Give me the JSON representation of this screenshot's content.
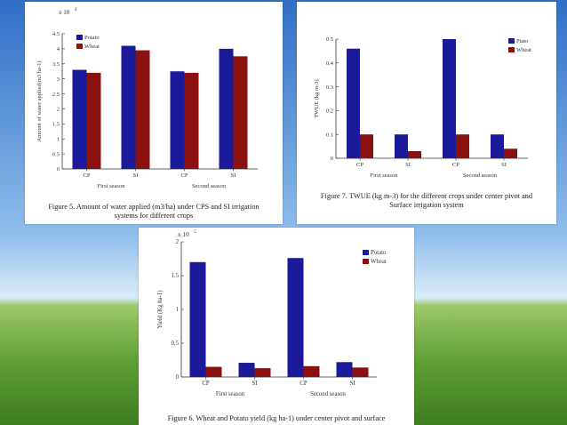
{
  "background": {
    "sky": "#3f7fd0",
    "sky_light": "#bcd9f3",
    "grass": "#6aa83a",
    "grass_dark": "#3e7d1e"
  },
  "colors": {
    "potato": "#1a1a9a",
    "wheat": "#8b1010"
  },
  "chart_data": [
    {
      "type": "bar",
      "ylabel": "Amount of water applied(m3 ha-1)",
      "exponent": "x 10",
      "exponent_power": "4",
      "yticks": [
        "0",
        "0.5",
        "1",
        "1.5",
        "2",
        "2.5",
        "3",
        "3.5",
        "4",
        "4.5"
      ],
      "ylim": [
        0,
        4.5
      ],
      "categories": [
        "CP",
        "SI",
        "CP",
        "SI"
      ],
      "groups": [
        "First season",
        "Second season"
      ],
      "series": [
        {
          "name": "Potato",
          "values": [
            3.3,
            4.1,
            3.25,
            4.0
          ]
        },
        {
          "name": "Wheat",
          "values": [
            3.2,
            3.95,
            3.2,
            3.75
          ]
        }
      ],
      "caption": [
        "Figure 5. Amount of water applied (m3/ha) under CPS and SI irrigation",
        "systems for different crops"
      ]
    },
    {
      "type": "bar",
      "ylabel": "TWUE (kg m-3)",
      "yticks": [
        "0",
        "0.1",
        "0.2",
        "0.3",
        "0.4",
        "0.5"
      ],
      "ylim": [
        0,
        0.5
      ],
      "categories": [
        "CP",
        "SI",
        "CP",
        "SI"
      ],
      "groups": [
        "First season",
        "Second season"
      ],
      "series": [
        {
          "name": "Ptato",
          "values": [
            0.46,
            0.1,
            0.5,
            0.1
          ]
        },
        {
          "name": "Wheat",
          "values": [
            0.1,
            0.03,
            0.1,
            0.04
          ]
        }
      ],
      "caption": [
        "Figure 7. TWUE (kg m-3) for the different crops under center pivot and",
        "Surface irrigation system"
      ]
    },
    {
      "type": "bar",
      "ylabel": "Yield (Kg ha-1)",
      "exponent": "x 10",
      "exponent_power": "5",
      "yticks": [
        "0",
        "0.5",
        "1",
        "1.5",
        "2"
      ],
      "ylim": [
        0,
        2
      ],
      "categories": [
        "CP",
        "SI",
        "CP",
        "SI"
      ],
      "groups": [
        "First season",
        "Second season"
      ],
      "series": [
        {
          "name": "Potato",
          "values": [
            1.7,
            0.21,
            1.76,
            0.22
          ]
        },
        {
          "name": "Wheat",
          "values": [
            0.15,
            0.13,
            0.16,
            0.14
          ]
        }
      ],
      "caption": [
        "Figure 6. Wheat and Potato yield (kg ha-1) under center pivot and surface"
      ]
    }
  ]
}
